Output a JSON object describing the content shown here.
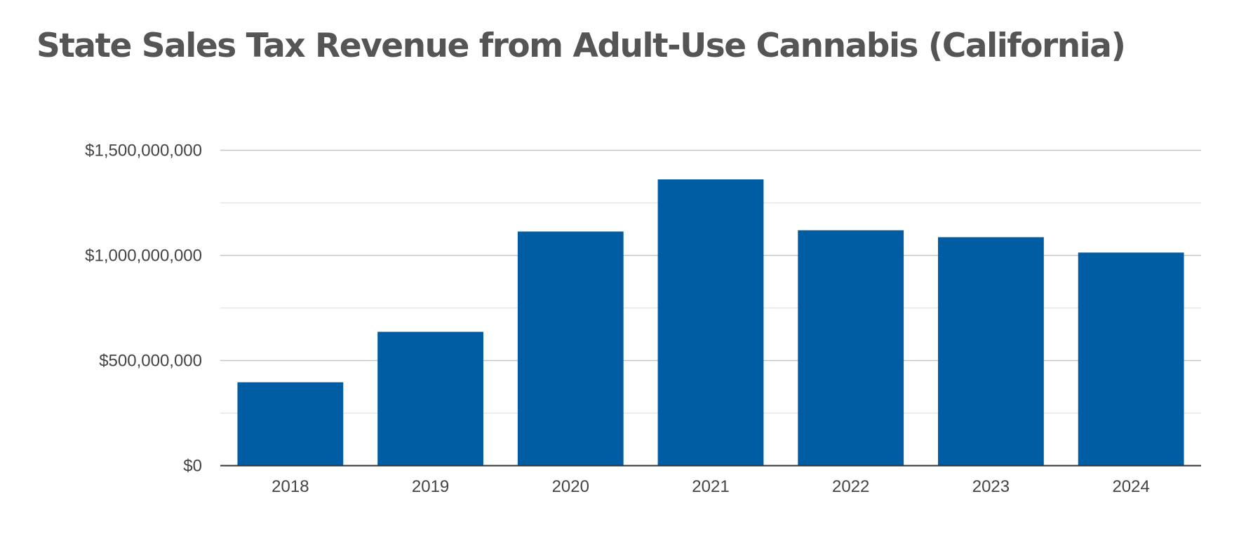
{
  "chart_data": {
    "type": "bar",
    "title": "State Sales Tax Revenue from Adult-Use Cannabis (California)",
    "categories": [
      "2018",
      "2019",
      "2020",
      "2021",
      "2022",
      "2023",
      "2024"
    ],
    "series": [
      {
        "values": [
          395000000,
          635000000,
          1112000000,
          1360000000,
          1118000000,
          1085000000,
          1012000000
        ]
      }
    ],
    "xlabel": "",
    "ylabel": "",
    "ylim": [
      0,
      1500000000
    ],
    "yticks": [
      {
        "value": 0,
        "label": "$0"
      },
      {
        "value": 500000000,
        "label": "$500,000,000"
      },
      {
        "value": 1000000000,
        "label": "$1,000,000,000"
      },
      {
        "value": 1500000000,
        "label": "$1,500,000,000"
      }
    ],
    "minor_gridlines": [
      250000000,
      750000000,
      1250000000
    ],
    "grid": true,
    "legend": "none",
    "colors": {
      "bar": "#005ca3",
      "major_grid": "#c4c4c4",
      "minor_grid": "#e6e6e6",
      "baseline": "#333333",
      "title": "#555555",
      "tick_text": "#444444"
    }
  }
}
